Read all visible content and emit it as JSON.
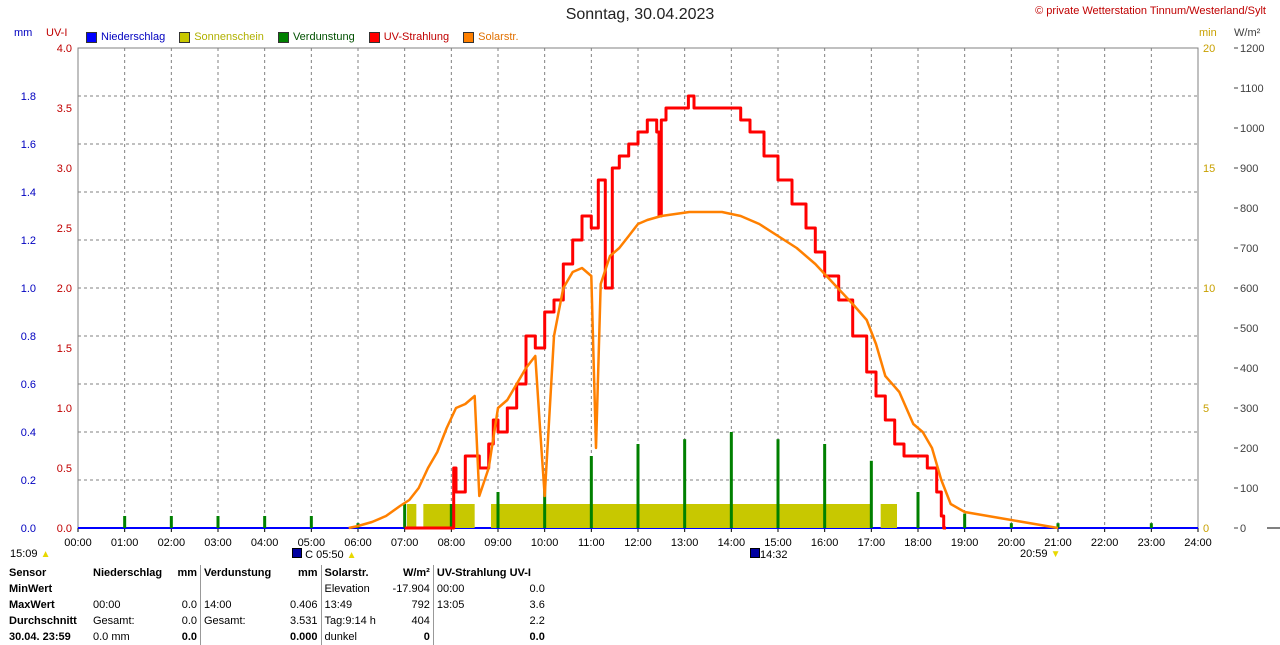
{
  "header": {
    "title": "Sonntag, 30.04.2023",
    "copyright": "© private Wetterstation Tinnum/Westerland/Sylt",
    "left_unit_mm": "mm",
    "left_unit_uv": "UV-I",
    "right_unit_min": "min",
    "right_unit_wm2": "W/m²"
  },
  "legend": [
    {
      "label": "Niederschlag",
      "color": "#0000ff"
    },
    {
      "label": "Sonnenschein",
      "color": "#c8c800"
    },
    {
      "label": "Verdunstung",
      "color": "#008000"
    },
    {
      "label": "UV-Strahlung",
      "color": "#ff0000"
    },
    {
      "label": "Solarstr.",
      "color": "#ff8000"
    }
  ],
  "colors": {
    "niederschlag": "#0000ff",
    "sonnenschein": "#c8c800",
    "verdunstung": "#008000",
    "uv": "#ff0000",
    "solar": "#ff8000",
    "grid": "#808080",
    "mm_axis": "#0000c0",
    "uv_axis": "#c00000",
    "min_axis": "#c8a000",
    "wm2_axis": "#404040"
  },
  "markers": {
    "moon_rise_time": "15:09",
    "sunrise_prefix": "C",
    "sunrise": "05:50",
    "solar_noon": "14:32",
    "sunset": "20:59"
  },
  "stats": {
    "headers": [
      "Sensor",
      "Niederschlag",
      "mm",
      "Verdunstung",
      "mm",
      "Solarstr.",
      "W/m²",
      "UV-Strahlung UV-I"
    ],
    "rows": [
      {
        "label": "MinWert",
        "c1": "",
        "c2": "",
        "c3": "",
        "c4": "",
        "c5": "Elevation",
        "c6": "-17.904",
        "c7": "00:00",
        "c8": "0.0"
      },
      {
        "label": "MaxWert",
        "c1": "00:00",
        "c2": "0.0",
        "c3": "14:00",
        "c4": "0.406",
        "c5": "13:49",
        "c6": "792",
        "c7": "13:05",
        "c8": "3.6"
      },
      {
        "label": "Durchschnitt",
        "c1": "Gesamt:",
        "c2": "0.0",
        "c3": "Gesamt:",
        "c4": "3.531",
        "c5": "Tag:9:14 h",
        "c6": "404",
        "c7": "",
        "c8": "2.2"
      },
      {
        "label": "30.04. 23:59",
        "c1": "0.0 mm",
        "c2": "0.0",
        "c3": "",
        "c4": "0.000",
        "c5": "dunkel",
        "c6": "0",
        "c7": "",
        "c8": "0.0"
      }
    ]
  },
  "chart_data": {
    "type": "line",
    "x_ticks": [
      "00:00",
      "01:00",
      "02:00",
      "03:00",
      "04:00",
      "05:00",
      "06:00",
      "07:00",
      "08:00",
      "09:00",
      "10:00",
      "11:00",
      "12:00",
      "13:00",
      "14:00",
      "15:00",
      "16:00",
      "17:00",
      "18:00",
      "19:00",
      "20:00",
      "21:00",
      "22:00",
      "23:00",
      "24:00"
    ],
    "axes": {
      "mm": {
        "ticks": [
          "0.0",
          "0.2",
          "0.4",
          "0.6",
          "0.8",
          "1.0",
          "1.2",
          "1.4",
          "1.6",
          "1.8"
        ],
        "range": [
          0,
          2.0
        ]
      },
      "uv": {
        "ticks": [
          "0.0",
          "0.5",
          "1.0",
          "1.5",
          "2.0",
          "2.5",
          "3.0",
          "3.5",
          "4.0"
        ],
        "range": [
          0,
          4.0
        ]
      },
      "min": {
        "ticks": [
          "0",
          "5",
          "10",
          "15",
          "20"
        ],
        "range": [
          0,
          20
        ]
      },
      "wm2": {
        "ticks": [
          "0",
          "100",
          "200",
          "300",
          "400",
          "500",
          "600",
          "700",
          "800",
          "900",
          "1000",
          "1100",
          "1200"
        ],
        "range": [
          0,
          1200
        ]
      }
    },
    "grid": true,
    "series": [
      {
        "name": "UV-Strahlung",
        "axis": "uv",
        "color": "#ff0000",
        "x": [
          7.0,
          7.9,
          8.05,
          8.1,
          8.3,
          8.6,
          8.8,
          8.9,
          9.0,
          9.2,
          9.4,
          9.6,
          9.8,
          10.0,
          10.2,
          10.4,
          10.6,
          10.8,
          11.0,
          11.15,
          11.3,
          11.45,
          11.6,
          11.8,
          12.0,
          12.2,
          12.4,
          12.45,
          12.5,
          12.6,
          12.8,
          13.0,
          13.08,
          13.2,
          13.5,
          14.0,
          14.2,
          14.4,
          14.7,
          15.0,
          15.3,
          15.6,
          15.8,
          16.0,
          16.3,
          16.6,
          16.9,
          17.1,
          17.3,
          17.5,
          17.7,
          18.0,
          18.2,
          18.4,
          18.5,
          18.55,
          18.6
        ],
        "values": [
          0.0,
          0.0,
          0.5,
          0.3,
          0.6,
          0.5,
          0.7,
          0.9,
          0.8,
          1.0,
          1.2,
          1.6,
          1.5,
          1.8,
          1.9,
          2.2,
          2.4,
          2.6,
          2.5,
          2.9,
          2.0,
          3.0,
          3.1,
          3.2,
          3.3,
          3.4,
          3.3,
          2.6,
          3.4,
          3.5,
          3.5,
          3.5,
          3.6,
          3.5,
          3.5,
          3.5,
          3.4,
          3.3,
          3.1,
          2.9,
          2.7,
          2.5,
          2.3,
          2.1,
          1.9,
          1.6,
          1.3,
          1.1,
          0.9,
          0.7,
          0.6,
          0.6,
          0.5,
          0.3,
          0.1,
          0.0,
          0.0
        ]
      },
      {
        "name": "Solarstr.",
        "axis": "wm2",
        "color": "#ff8000",
        "x": [
          5.8,
          6.0,
          6.3,
          6.6,
          6.9,
          7.1,
          7.3,
          7.5,
          7.7,
          7.9,
          8.1,
          8.3,
          8.5,
          8.6,
          8.8,
          9.0,
          9.2,
          9.4,
          9.6,
          9.8,
          9.9,
          10.0,
          10.2,
          10.4,
          10.6,
          10.8,
          11.0,
          11.1,
          11.2,
          11.4,
          11.6,
          11.8,
          12.0,
          12.2,
          12.5,
          12.8,
          13.1,
          13.4,
          13.8,
          14.2,
          14.6,
          15.0,
          15.4,
          15.8,
          16.2,
          16.6,
          16.9,
          17.1,
          17.3,
          17.6,
          17.9,
          18.1,
          18.3,
          18.5,
          18.7,
          19.0,
          19.5,
          20.0,
          20.5,
          21.0
        ],
        "values": [
          0,
          5,
          15,
          30,
          55,
          70,
          100,
          150,
          190,
          250,
          300,
          310,
          330,
          80,
          150,
          300,
          320,
          360,
          400,
          430,
          250,
          80,
          480,
          600,
          640,
          650,
          630,
          200,
          610,
          680,
          700,
          730,
          760,
          770,
          780,
          785,
          790,
          790,
          790,
          780,
          760,
          730,
          700,
          660,
          610,
          560,
          520,
          460,
          380,
          340,
          260,
          240,
          200,
          120,
          60,
          40,
          30,
          20,
          10,
          0
        ]
      }
    ],
    "verdunstung_bars": {
      "axis": "min",
      "hours": [
        1,
        2,
        3,
        4,
        5,
        6,
        7,
        8,
        9,
        10,
        11,
        12,
        13,
        14,
        15,
        16,
        17,
        18,
        19,
        20,
        21,
        23
      ],
      "values": [
        0.5,
        0.5,
        0.5,
        0.5,
        0.5,
        0.2,
        1.0,
        1.0,
        1.5,
        2.0,
        3.0,
        3.5,
        3.7,
        4.0,
        3.7,
        3.5,
        2.8,
        1.5,
        0.6,
        0.2,
        0.2,
        0.2
      ]
    },
    "sonnenschein_blocks": {
      "axis": "min",
      "value": 1.0,
      "intervals": [
        [
          7.05,
          7.25
        ],
        [
          7.4,
          8.5
        ],
        [
          8.85,
          17.0
        ],
        [
          17.2,
          17.55
        ]
      ]
    }
  }
}
